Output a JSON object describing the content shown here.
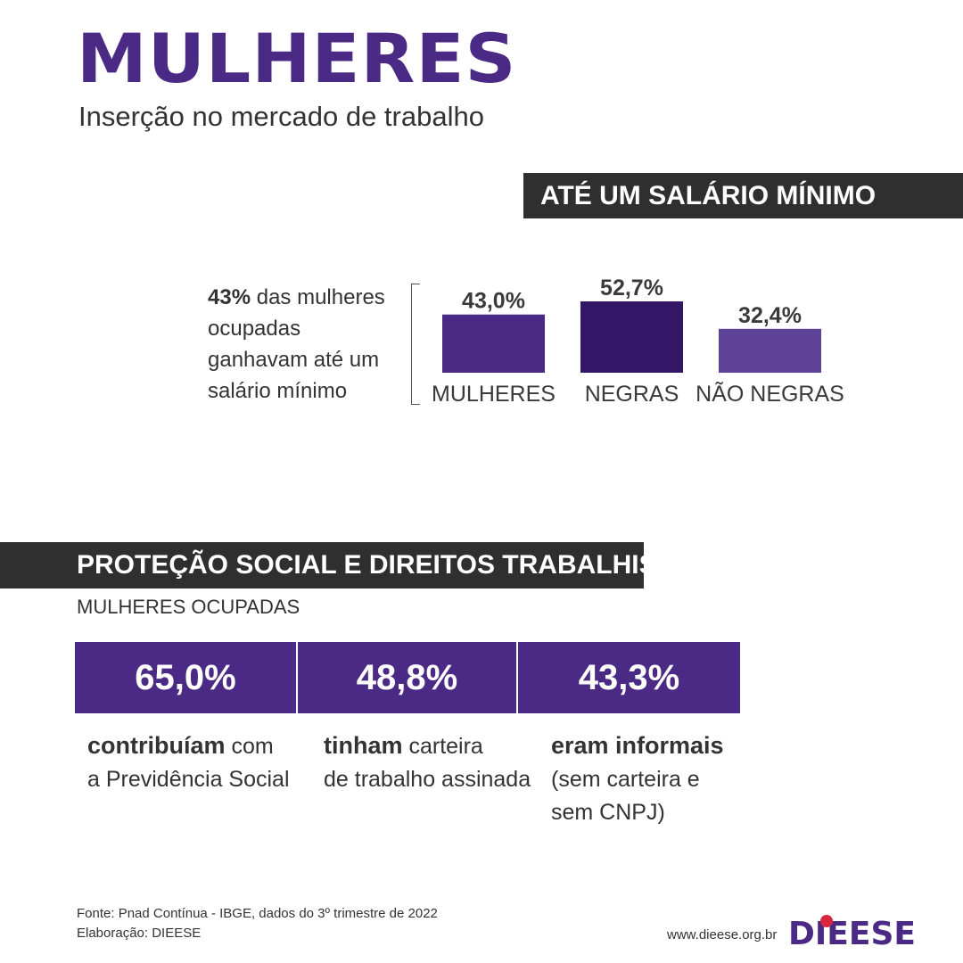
{
  "header": {
    "title": "MULHERES",
    "subtitle": "Inserção no mercado de trabalho"
  },
  "section1": {
    "banner": "ATÉ UM SALÁRIO MÍNIMO",
    "note_bold": "43%",
    "note_rest": " das mulheres ocupadas ganhavam até um salário mínimo"
  },
  "chart_data": {
    "type": "bar",
    "title": "ATÉ UM SALÁRIO MÍNIMO",
    "categories": [
      "MULHERES",
      "NEGRAS",
      "NÃO NEGRAS"
    ],
    "values": [
      43.0,
      52.7,
      32.4
    ],
    "value_labels": [
      "43,0%",
      "52,7%",
      "32,4%"
    ],
    "colors": [
      "#4b2a86",
      "#331766",
      "#5e4295"
    ],
    "xlabel": "",
    "ylabel": "",
    "ylim": [
      0,
      52.7
    ],
    "grid": false
  },
  "section2": {
    "banner": "PROTEÇÃO SOCIAL E DIREITOS TRABALHISTAS",
    "label": "MULHERES OCUPADAS",
    "stats": [
      {
        "value": "65,0%",
        "bold": "contribuíam",
        "rest1": " com",
        "rest2": "a Previdência Social"
      },
      {
        "value": "48,8%",
        "bold": "tinham",
        "rest1": " carteira",
        "rest2": "de trabalho assinada"
      },
      {
        "value": "43,3%",
        "bold": "eram informais",
        "rest1": "",
        "rest2": "(sem carteira e",
        "rest3": "sem CNPJ)"
      }
    ]
  },
  "footer": {
    "source": "Fonte: Pnad Contínua - IBGE, dados do 3º trimestre de 2022",
    "credit": "Elaboração: DIEESE",
    "website": "www.dieese.org.br",
    "logo": "DIEESE"
  },
  "colors": {
    "brand_purple": "#4b2a86",
    "banner_dark": "#2f2f2f"
  }
}
